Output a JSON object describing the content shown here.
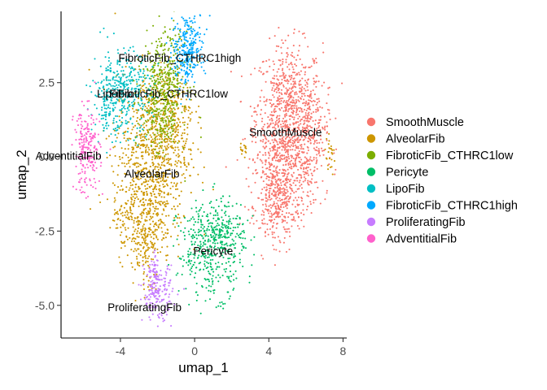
{
  "chart_data": {
    "type": "scatter",
    "xlabel": "umap_1",
    "ylabel": "umap_2",
    "xlim": [
      -7.2,
      8.2
    ],
    "ylim": [
      -6.1,
      4.9
    ],
    "xticks": [
      -4,
      0,
      4,
      8
    ],
    "yticks": [
      -5.0,
      -2.5,
      0.0,
      2.5
    ],
    "xtick_labels": [
      "-4",
      "0",
      "4",
      "8"
    ],
    "ytick_labels": [
      "-5.0",
      "-2.5",
      "0.0",
      "2.5"
    ],
    "grid": false,
    "legend_position": "right",
    "series": [
      {
        "name": "SmoothMuscle",
        "color": "#F8766D",
        "label_at": [
          4.9,
          0.8
        ],
        "blobs": [
          {
            "cx": 5.1,
            "cy": 1.6,
            "sx": 0.9,
            "sy": 1.1,
            "n": 700
          },
          {
            "cx": 4.7,
            "cy": -0.5,
            "sx": 0.8,
            "sy": 1.0,
            "n": 500
          },
          {
            "cx": 4.4,
            "cy": -1.7,
            "sx": 0.5,
            "sy": 0.6,
            "n": 180
          },
          {
            "cx": 6.2,
            "cy": 0.5,
            "sx": 0.5,
            "sy": 0.9,
            "n": 180
          }
        ]
      },
      {
        "name": "AlveolarFib",
        "color": "#CD9600",
        "label_at": [
          -2.3,
          -0.6
        ],
        "blobs": [
          {
            "cx": -2.3,
            "cy": 0.2,
            "sx": 1.0,
            "sy": 1.3,
            "n": 700
          },
          {
            "cx": -2.8,
            "cy": -2.0,
            "sx": 0.8,
            "sy": 0.8,
            "n": 350
          },
          {
            "cx": -1.2,
            "cy": 1.5,
            "sx": 0.6,
            "sy": 0.9,
            "n": 200
          },
          {
            "cx": -2.6,
            "cy": -3.6,
            "sx": 0.35,
            "sy": 0.7,
            "n": 60
          },
          {
            "cx": 7.3,
            "cy": 0.0,
            "sx": 0.15,
            "sy": 0.3,
            "n": 25
          },
          {
            "cx": 2.6,
            "cy": 0.2,
            "sx": 0.15,
            "sy": 0.15,
            "n": 15
          }
        ]
      },
      {
        "name": "FibroticFib_CTHRC1low",
        "color": "#7CAE00",
        "label_at": [
          -1.4,
          2.1
        ],
        "blobs": [
          {
            "cx": -1.6,
            "cy": 2.7,
            "sx": 0.6,
            "sy": 0.8,
            "n": 320
          },
          {
            "cx": -1.8,
            "cy": 1.3,
            "sx": 0.5,
            "sy": 0.7,
            "n": 150
          }
        ]
      },
      {
        "name": "Pericyte",
        "color": "#00BE67",
        "label_at": [
          1.0,
          -3.2
        ],
        "blobs": [
          {
            "cx": 0.9,
            "cy": -3.1,
            "sx": 0.9,
            "sy": 0.8,
            "n": 420
          },
          {
            "cx": 1.6,
            "cy": -2.4,
            "sx": 0.5,
            "sy": 0.4,
            "n": 100
          }
        ]
      },
      {
        "name": "LipoFib",
        "color": "#00BFC4",
        "label_at": [
          -4.3,
          2.1
        ],
        "blobs": [
          {
            "cx": -3.9,
            "cy": 2.2,
            "sx": 0.8,
            "sy": 0.7,
            "n": 340
          },
          {
            "cx": -4.6,
            "cy": 1.8,
            "sx": 0.4,
            "sy": 0.5,
            "n": 80
          }
        ]
      },
      {
        "name": "FibroticFib_CTHRC1high",
        "color": "#00A9FF",
        "label_at": [
          -0.8,
          3.3
        ],
        "blobs": [
          {
            "cx": -0.3,
            "cy": 3.8,
            "sx": 0.45,
            "sy": 0.55,
            "n": 220
          },
          {
            "cx": -0.5,
            "cy": 2.9,
            "sx": 0.3,
            "sy": 0.4,
            "n": 60
          }
        ]
      },
      {
        "name": "ProliferatingFib",
        "color": "#C77CFF",
        "label_at": [
          -2.7,
          -5.1
        ],
        "blobs": [
          {
            "cx": -2.0,
            "cy": -4.6,
            "sx": 0.4,
            "sy": 0.45,
            "n": 170
          },
          {
            "cx": -2.2,
            "cy": -3.9,
            "sx": 0.2,
            "sy": 0.3,
            "n": 40
          }
        ]
      },
      {
        "name": "AdventitialFib",
        "color": "#FF61CC",
        "label_at": [
          -6.8,
          0.0
        ],
        "blobs": [
          {
            "cx": -5.8,
            "cy": 0.2,
            "sx": 0.35,
            "sy": 0.7,
            "n": 220
          }
        ]
      }
    ]
  }
}
